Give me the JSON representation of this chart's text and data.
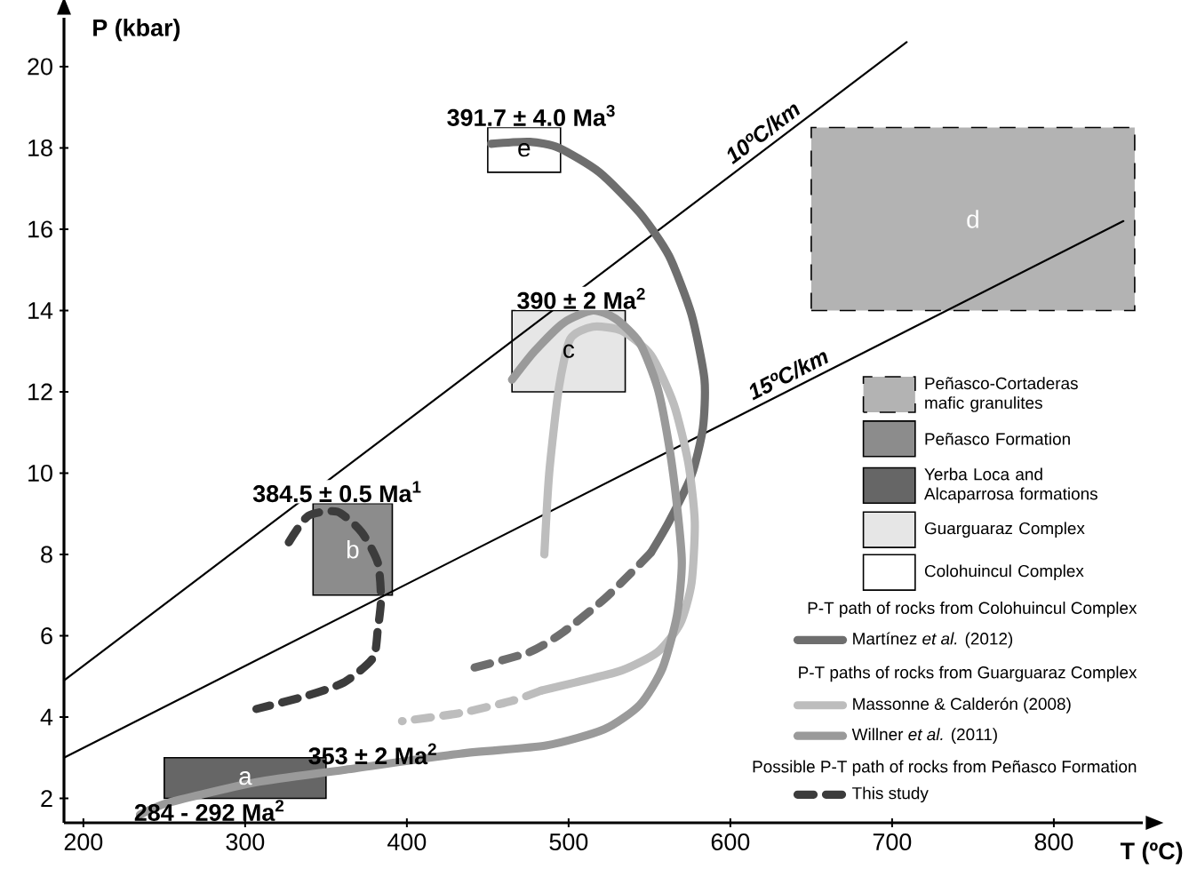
{
  "chart_data": {
    "type": "line",
    "xlabel": "T (ºC)",
    "ylabel": "P (kbar)",
    "xlim": [
      188,
      855
    ],
    "ylim": [
      1.4,
      21.2
    ],
    "xticks": [
      200,
      300,
      400,
      500,
      600,
      700,
      800
    ],
    "yticks": [
      2,
      4,
      6,
      8,
      10,
      12,
      14,
      16,
      18,
      20
    ],
    "legend": "right",
    "series": [
      {
        "name": "Peñasco-Cortaderas mafic granulites",
        "type": "area",
        "color": "#b3b3b3",
        "line_style": "dashed",
        "x": [
          650,
          850,
          850,
          650,
          650
        ],
        "values": [
          14,
          14,
          18.5,
          18.5,
          14
        ]
      },
      {
        "name": "Peñasco Formation",
        "type": "area",
        "color": "#8c8c8c",
        "x": [
          342,
          391,
          391,
          342,
          342
        ],
        "values": [
          7,
          7,
          9.25,
          9.25,
          7
        ]
      },
      {
        "name": "Yerba Loca and Alcaparrosa formations",
        "type": "area",
        "color": "#666666",
        "x": [
          250,
          350,
          350,
          250,
          250
        ],
        "values": [
          2,
          2,
          3,
          3,
          2
        ]
      },
      {
        "name": "Guarguaraz Complex",
        "type": "area",
        "color": "#e6e6e6",
        "x": [
          465,
          535,
          535,
          465,
          465
        ],
        "values": [
          12,
          12,
          14,
          14,
          12
        ]
      },
      {
        "name": "Colohuincul Complex",
        "type": "area",
        "color": "#ffffff",
        "x": [
          450,
          495,
          495,
          450,
          450
        ],
        "values": [
          17.4,
          17.4,
          18.5,
          18.5,
          17.4
        ]
      },
      {
        "name": "10ºC/km",
        "color": "#000000",
        "x": [
          188,
          709
        ],
        "values": [
          4.9,
          20.6
        ]
      },
      {
        "name": "15ºC/km",
        "color": "#000000",
        "x": [
          188,
          843
        ],
        "values": [
          3.0,
          16.2
        ]
      },
      {
        "name": "Martínez *et al.* (2012)",
        "color": "#6e6e6e",
        "x": [
          452,
          476,
          494,
          519,
          544,
          562,
          576,
          584,
          583,
          576,
          562,
          551
        ],
        "values": [
          18.1,
          18.15,
          18.0,
          17.4,
          16.4,
          15.35,
          13.9,
          12.3,
          11.1,
          9.95,
          8.8,
          8.05
        ]
      },
      {
        "color": "#6e6e6e",
        "line_style": "dashed",
        "x": [
          551,
          540,
          522,
          497,
          476,
          440
        ],
        "values": [
          8.05,
          7.6,
          6.9,
          6.1,
          5.6,
          5.2
        ]
      },
      {
        "name": "Massonne & Calderón (2008)",
        "color": "#bdbdbd",
        "x": [
          485,
          488,
          494,
          501,
          515,
          533,
          551,
          565,
          574,
          578,
          576,
          569,
          555,
          533,
          504,
          483
        ],
        "values": [
          8.0,
          10.0,
          12.1,
          13.3,
          13.6,
          13.5,
          12.9,
          11.7,
          10.25,
          8.8,
          7.3,
          6.3,
          5.6,
          5.15,
          4.85,
          4.65
        ]
      },
      {
        "color": "#bdbdbd",
        "line_style": "dashed",
        "x": [
          483,
          465,
          433,
          397
        ],
        "values": [
          4.65,
          4.4,
          4.1,
          3.9
        ]
      },
      {
        "name": "Willner *et al.* (2011)",
        "color": "#9a9a9a",
        "x": [
          465,
          479,
          497,
          515,
          529,
          544,
          555,
          562,
          567,
          570,
          567,
          558,
          544,
          522,
          486,
          433,
          361,
          307,
          253,
          235
        ],
        "values": [
          12.3,
          13.0,
          13.7,
          14.0,
          13.8,
          13.2,
          12.1,
          10.7,
          9.2,
          7.8,
          6.5,
          5.2,
          4.3,
          3.7,
          3.3,
          3.1,
          2.7,
          2.4,
          1.9,
          1.6
        ]
      },
      {
        "name": "This study",
        "color": "#3c3c3c",
        "line_style": "dashed",
        "x": [
          327,
          339,
          357,
          372,
          382,
          384,
          382,
          379,
          361,
          336,
          307
        ],
        "values": [
          8.3,
          8.95,
          9.05,
          8.55,
          7.8,
          6.9,
          6.15,
          5.45,
          4.85,
          4.5,
          4.2
        ]
      }
    ],
    "annotations": [
      {
        "text": "391.7 ± 4.0 Ma$^{3}$",
        "x": 477,
        "y": 18.5
      },
      {
        "text": "390 ± 2 Ma$^{2}$",
        "x": 508,
        "y": 14
      },
      {
        "text": "384.5 ± 0.5 Ma$^{1}$",
        "x": 357,
        "y": 9.25
      },
      {
        "text": "353 ± 2 Ma$^{2}$",
        "x": 379,
        "y": 2.8
      },
      {
        "text": "284 - 292 Ma$^{2}$",
        "x": 278,
        "y": 2
      },
      "d",
      "b",
      "a",
      "c",
      "e",
      "P-T path of rocks from Colohuincul Complex",
      "P-T paths of rocks from Guarguaraz Complex",
      "Possible P-T path of rocks from Peñasco Formation"
    ]
  }
}
